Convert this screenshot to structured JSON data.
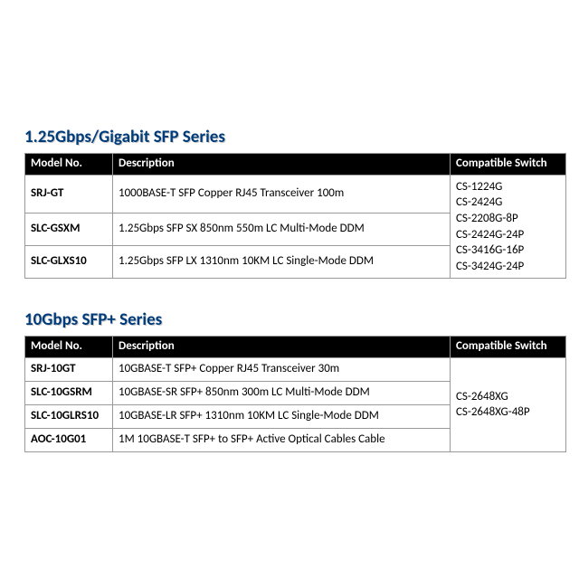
{
  "section1": {
    "title": "1.25Gbps/Gigabit SFP Series",
    "headers": {
      "model": "Model No.",
      "desc": "Description",
      "comp": "Compatible Switch"
    },
    "rows": [
      {
        "model": "SRJ-GT",
        "desc": "1000BASE-T SFP Copper RJ45 Transceiver 100m"
      },
      {
        "model": "SLC-GSXM",
        "desc": "1.25Gbps SFP SX 850nm 550m LC Multi-Mode DDM"
      },
      {
        "model": "SLC-GLXS10",
        "desc": "1.25Gbps SFP LX 1310nm 10KM LC Single-Mode DDM"
      }
    ],
    "compat": [
      "CS-1224G",
      "CS-2424G",
      "CS-2208G-8P",
      "CS-2424G-24P",
      "CS-3416G-16P",
      "CS-3424G-24P"
    ]
  },
  "section2": {
    "title": "10Gbps SFP+ Series",
    "headers": {
      "model": "Model No.",
      "desc": "Description",
      "comp": "Compatible Switch"
    },
    "rows": [
      {
        "model": "SRJ-10GT",
        "desc": "10GBASE-T SFP+ Copper RJ45 Transceiver 30m"
      },
      {
        "model": "SLC-10GSRM",
        "desc": "10GBASE-SR SFP+ 850nm 300m LC Multi-Mode DDM"
      },
      {
        "model": "SLC-10GLRS10",
        "desc": "10GBASE-LR SFP+ 1310nm 10KM LC Single-Mode DDM"
      },
      {
        "model": "AOC-10G01",
        "desc": "1M 10GBASE-T SFP+ to SFP+ Active Optical Cables Cable"
      }
    ],
    "compat": [
      "CS-2648XG",
      "CS-2648XG-48P"
    ]
  },
  "colors": {
    "title_color": "#003b7a",
    "title_shadow": "#c9c9c9",
    "header_bg": "#000000",
    "header_fg": "#ffffff",
    "border": "#999999",
    "background": "#ffffff"
  }
}
